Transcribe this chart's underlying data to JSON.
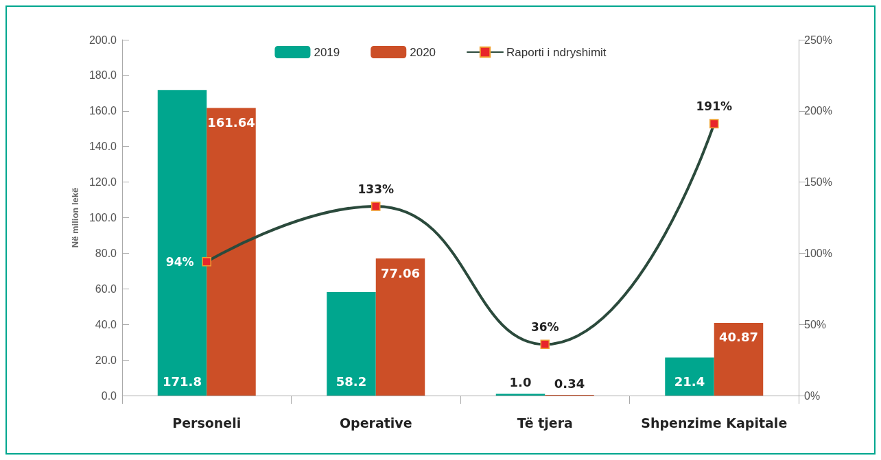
{
  "chart_data": {
    "type": "bar",
    "ylabel": "Në milion lekë",
    "categories": [
      "Personeli",
      "Operative",
      "Të tjera",
      "Shpenzime Kapitale"
    ],
    "series": [
      {
        "name": "2019",
        "color": "#00a68e",
        "values": [
          171.8,
          58.2,
          1.0,
          21.4
        ],
        "value_labels": [
          "171.8",
          "58.2",
          "1.0",
          "21.4"
        ]
      },
      {
        "name": "2020",
        "color": "#cc4f27",
        "values": [
          161.64,
          77.06,
          0.34,
          40.87
        ],
        "value_labels": [
          "161.64",
          "77.06",
          "0.34",
          "40.87"
        ]
      },
      {
        "name": "Raporti i ndryshimit",
        "type": "line",
        "axis": "y2",
        "color": "#2b4a3c",
        "marker": "square",
        "line_style": "solid",
        "values": [
          94,
          133,
          36,
          191
        ],
        "value_labels": [
          "94%",
          "133%",
          "36%",
          "191%"
        ]
      }
    ],
    "ylim": [
      0,
      200
    ],
    "yticks": [
      {
        "value": 0,
        "label": "0.0"
      },
      {
        "value": 20,
        "label": "20.0"
      },
      {
        "value": 40,
        "label": "40.0"
      },
      {
        "value": 60,
        "label": "60.0"
      },
      {
        "value": 80,
        "label": "80.0"
      },
      {
        "value": 100,
        "label": "100.0"
      },
      {
        "value": 120,
        "label": "120.0"
      },
      {
        "value": 140,
        "label": "140.0"
      },
      {
        "value": 160,
        "label": "160.0"
      },
      {
        "value": 180,
        "label": "180.0"
      },
      {
        "value": 200,
        "label": "200.0"
      }
    ],
    "y2lim": [
      0,
      250
    ],
    "y2ticks": [
      {
        "value": 0,
        "label": "0%"
      },
      {
        "value": 50,
        "label": "50%"
      },
      {
        "value": 100,
        "label": "100%"
      },
      {
        "value": 150,
        "label": "150%"
      },
      {
        "value": 200,
        "label": "200%"
      },
      {
        "value": 250,
        "label": "250%"
      }
    ],
    "grid": false,
    "legend": "top"
  }
}
